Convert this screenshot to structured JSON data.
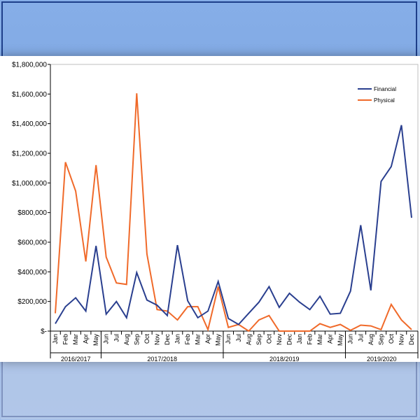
{
  "chart_data": {
    "type": "line",
    "title": "",
    "xlabel": "",
    "ylabel": "",
    "ylim": [
      0,
      1800000
    ],
    "yticks": [
      "$-",
      "$200,000",
      "$400,000",
      "$600,000",
      "$800,000",
      "$1,000,000",
      "$1,200,000",
      "$1,400,000",
      "$1,600,000",
      "$1,800,000"
    ],
    "ytick_values": [
      0,
      200000,
      400000,
      600000,
      800000,
      1000000,
      1200000,
      1400000,
      1600000,
      1800000
    ],
    "grid": false,
    "legend": "top-right",
    "categories": [
      "Jan",
      "Feb",
      "Mar",
      "Apr",
      "May",
      "Jun",
      "Jul",
      "Aug",
      "Sep",
      "Oct",
      "Nov",
      "Dec",
      "Jan",
      "Feb",
      "Mar",
      "Apr",
      "May",
      "Jun",
      "Jul",
      "Aug",
      "Sep",
      "Oct",
      "Nov",
      "Dec",
      "Jan",
      "Feb",
      "Mar",
      "Apr",
      "May",
      "Jun",
      "Jul",
      "Aug",
      "Sep",
      "Oct",
      "Nov",
      "Dec"
    ],
    "groups": [
      {
        "label": "2016/2017",
        "count": 5
      },
      {
        "label": "2017/2018",
        "count": 12
      },
      {
        "label": "2018/2019",
        "count": 12
      },
      {
        "label": "2019/2020",
        "count": 7
      }
    ],
    "series": [
      {
        "name": "Financial",
        "color": "#2a3f8f",
        "values": [
          50000,
          165000,
          225000,
          135000,
          575000,
          115000,
          200000,
          90000,
          395000,
          210000,
          175000,
          105000,
          580000,
          205000,
          90000,
          135000,
          335000,
          85000,
          45000,
          120000,
          195000,
          300000,
          160000,
          255000,
          195000,
          145000,
          235000,
          115000,
          120000,
          270000,
          715000,
          275000,
          1010000,
          1110000,
          1390000,
          765000
        ]
      },
      {
        "name": "Physical",
        "color": "#f06a2a",
        "values": [
          120000,
          1140000,
          945000,
          470000,
          1120000,
          500000,
          325000,
          315000,
          1605000,
          520000,
          145000,
          135000,
          75000,
          165000,
          165000,
          10000,
          300000,
          25000,
          45000,
          0,
          75000,
          105000,
          0,
          0,
          0,
          0,
          50000,
          25000,
          45000,
          5000,
          40000,
          35000,
          10000,
          180000,
          75000,
          10000
        ]
      }
    ]
  }
}
